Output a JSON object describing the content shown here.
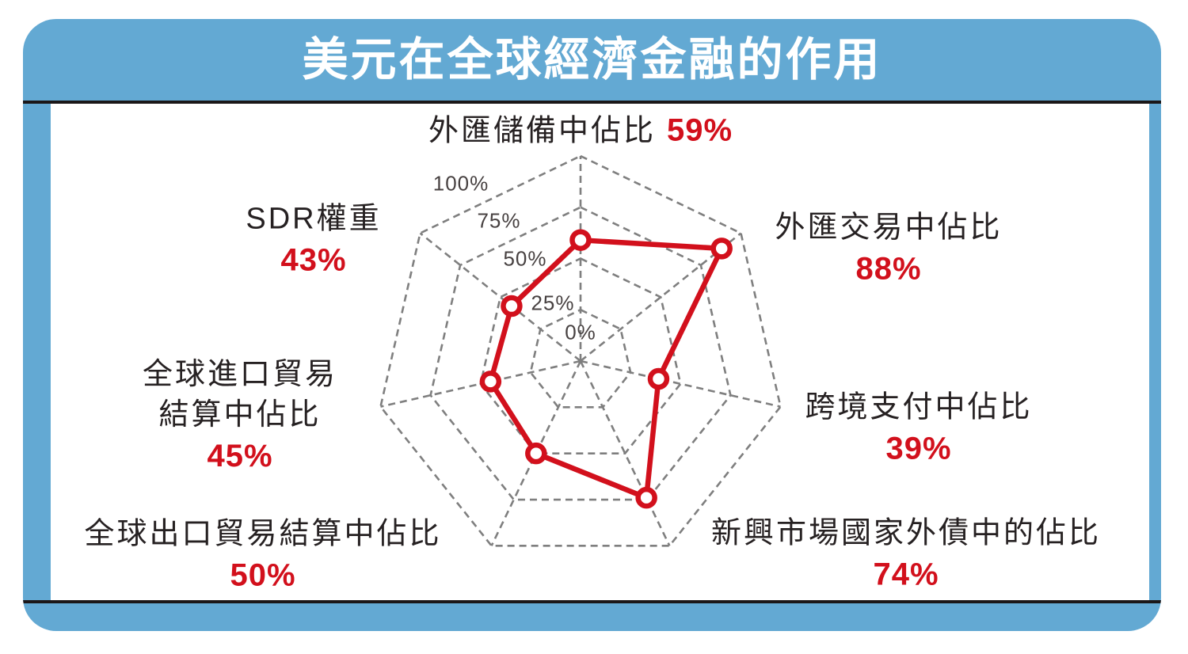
{
  "title": "美元在全球經濟金融的作用",
  "chart_data": {
    "type": "radar",
    "categories": [
      "外匯儲備中佔比",
      "外匯交易中佔比",
      "跨境支付中佔比",
      "新興市場國家外債中的佔比",
      "全球出口貿易結算中佔比",
      "全球進口貿易結算中佔比",
      "SDR權重"
    ],
    "values": [
      59,
      88,
      39,
      74,
      50,
      45,
      43
    ],
    "unit": "%",
    "axis_order": "clockwise-from-top",
    "r_min": 0,
    "r_max": 100,
    "ring_step": 25,
    "tick_labels": [
      "100%",
      "75%",
      "50%",
      "25%",
      "0%"
    ],
    "grid_style": "dashed",
    "series_color": "#d2101c",
    "grid_color": "#7f7f7f",
    "marker": "open-circle"
  },
  "axis_labels": {
    "top": {
      "text": "外匯儲備中佔比",
      "value": "59%"
    },
    "upper_right": {
      "text": "外匯交易中佔比",
      "value": "88%"
    },
    "right": {
      "text": "跨境支付中佔比",
      "value": "39%"
    },
    "lower_right": {
      "text": "新興市場國家外債中的佔比",
      "value": "74%"
    },
    "lower_left": {
      "text": "全球出口貿易結算中佔比",
      "value": "50%"
    },
    "left": {
      "line1": "全球進口貿易",
      "line2": "結算中佔比",
      "value": "45%"
    },
    "upper_left": {
      "text": "SDR權重",
      "value": "43%"
    }
  },
  "colors": {
    "frame_blue": "#63a9d3",
    "rule_black": "#1b1718",
    "label_dark": "#262122",
    "value_red": "#d2101c"
  }
}
